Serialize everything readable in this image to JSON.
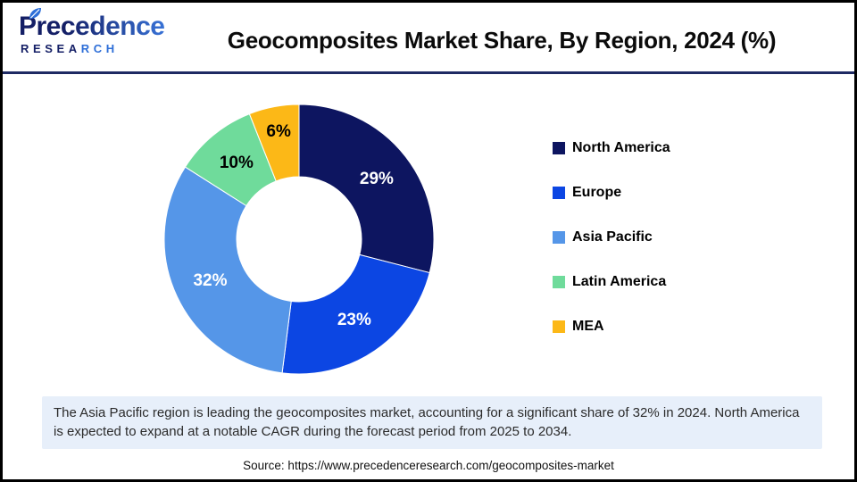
{
  "header": {
    "logo": {
      "brand": "Precedence",
      "sub_dark": "RESEA",
      "sub_light": "RCH",
      "brand_color_dark": "#141f66",
      "brand_color_light": "#3a77dd"
    },
    "title": "Geocomposites Market Share, By Region, 2024 (%)"
  },
  "chart_data": {
    "type": "pie",
    "donut": true,
    "title": "Geocomposites Market Share, By Region, 2024 (%)",
    "unit": "%",
    "categories": [
      "North America",
      "Europe",
      "Asia Pacific",
      "Latin America",
      "MEA"
    ],
    "values": [
      29,
      23,
      32,
      10,
      6
    ],
    "data_labels": [
      "29%",
      "23%",
      "32%",
      "10%",
      "6%"
    ],
    "colors": [
      "#0d1560",
      "#0c46e3",
      "#5596e8",
      "#6fdb9b",
      "#fcb817"
    ],
    "data_label_colors": [
      "#ffffff",
      "#ffffff",
      "#ffffff",
      "#000000",
      "#000000"
    ],
    "start_angle_deg": 0,
    "direction": "clockwise",
    "legend_position": "right",
    "label_radii": [
      110,
      110,
      110,
      110,
      122
    ]
  },
  "note": {
    "text": "The Asia Pacific region is leading the geocomposites market, accounting for a significant share of 32% in 2024. North America is expected to expand at a notable CAGR during the forecast period from 2025 to 2034."
  },
  "source": {
    "text": "Source: https://www.precedenceresearch.com/geocomposites-market"
  }
}
